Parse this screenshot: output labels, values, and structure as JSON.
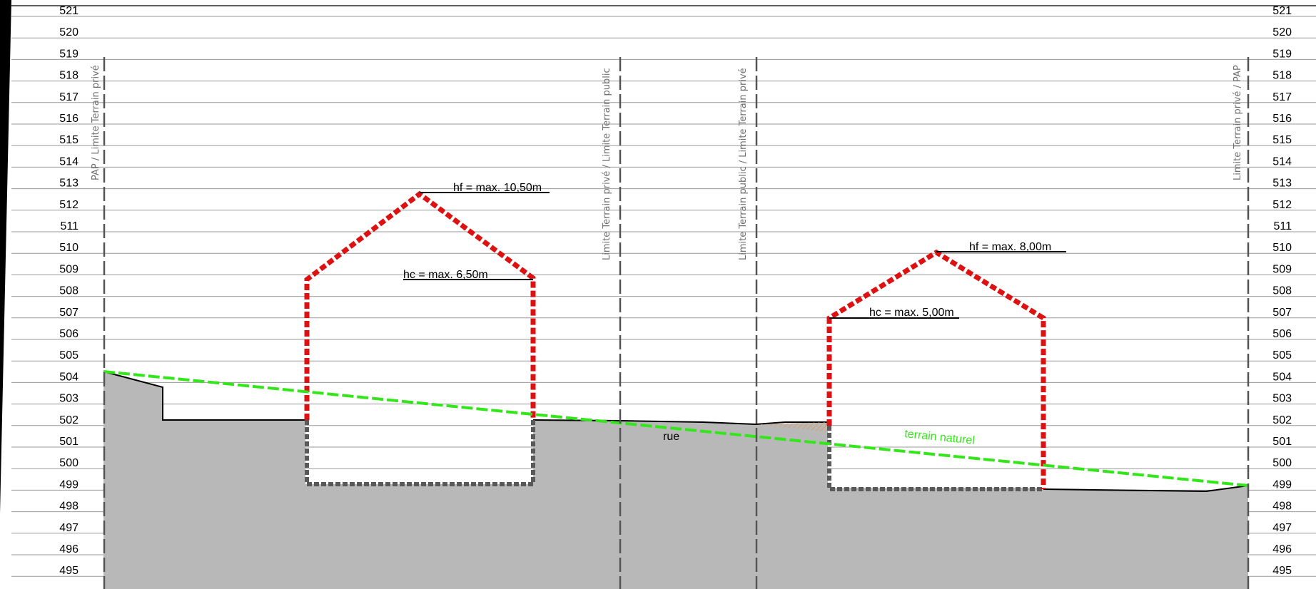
{
  "elevation_labels_left": [
    "521",
    "520",
    "519",
    "518",
    "517",
    "516",
    "515",
    "514",
    "513",
    "512",
    "511",
    "510",
    "509",
    "508",
    "507",
    "506",
    "505",
    "504",
    "503",
    "502",
    "501",
    "500",
    "499",
    "498",
    "497",
    "496",
    "495"
  ],
  "elevation_labels_right": [
    "521",
    "520",
    "519",
    "518",
    "517",
    "516",
    "515",
    "514",
    "513",
    "512",
    "511",
    "510",
    "509",
    "508",
    "507",
    "506",
    "505",
    "504",
    "503",
    "502",
    "501",
    "500",
    "499",
    "498",
    "497",
    "496",
    "495"
  ],
  "limits": {
    "left": "PAP / Limite Terrain privé",
    "center_left": "Limite Terrain privé / Limite Terrain public",
    "center_right": "Limite Terrain public / Limite Terrain privé",
    "right": "Limite Terrain privé / PAP"
  },
  "building_a": {
    "hf": "hf = max. 10,50m",
    "hc": "hc = max. 6,50m"
  },
  "building_b": {
    "hf": "hf = max. 8,00m",
    "hc": "hc = max. 5,00m"
  },
  "road": {
    "label": "rue"
  },
  "terrain": {
    "label": "terrain naturel"
  },
  "colors": {
    "envelope": "#dd1111",
    "natural_terrain": "#33e61a",
    "ground_fill": "#b8b8b8",
    "basement": "#595959",
    "hatch": "#d9a066"
  }
}
